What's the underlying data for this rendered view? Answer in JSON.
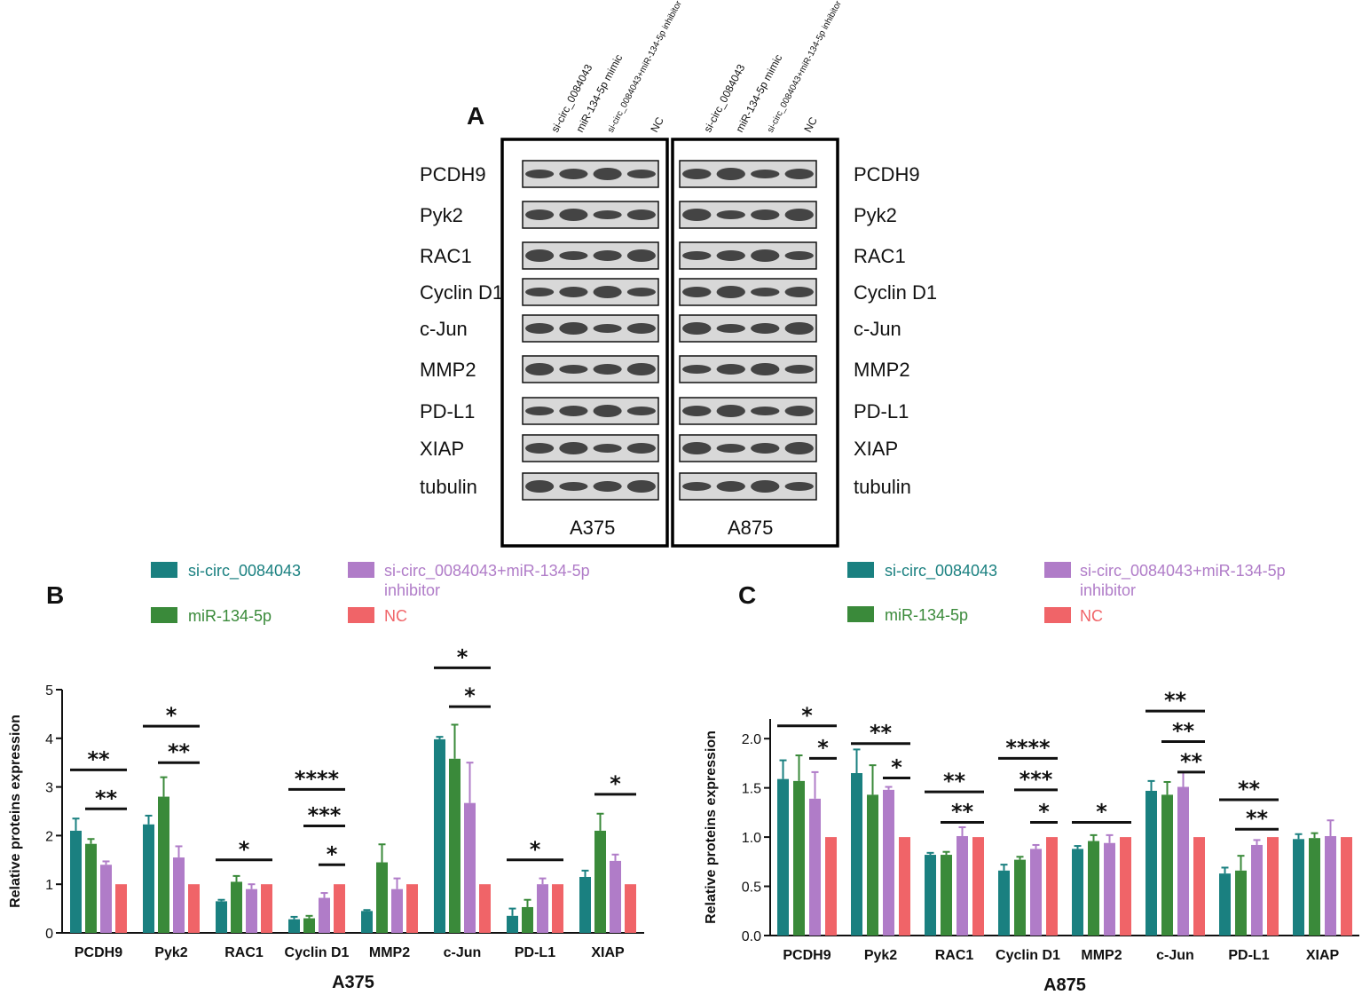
{
  "colors": {
    "si_circ": "#1a8080",
    "mir": "#3a8a3a",
    "combo": "#b07cc8",
    "nc": "#f06468"
  },
  "blot": {
    "panel_letter": "A",
    "proteins": [
      "PCDH9",
      "Pyk2",
      "RAC1",
      "Cyclin D1",
      "c-Jun",
      "MMP2",
      "PD-L1",
      "XIAP",
      "tubulin"
    ],
    "lanes": [
      "si-circ_0084043",
      "miR-134-5p mimic",
      "si-circ_0084043+miR-134-5p inhibitor",
      "NC"
    ],
    "cell_lines": [
      "A375",
      "A875"
    ]
  },
  "legend": {
    "si_circ": "si-circ_0084043",
    "mir": "miR-134-5p",
    "combo_line1": "si-circ_0084043+miR-134-5p",
    "combo_line2": "inhibitor",
    "nc": "NC"
  },
  "chart_data": [
    {
      "panel": "B",
      "type": "bar",
      "title": "A375",
      "ylabel": "Relative proteins expression",
      "ylim": [
        0,
        5
      ],
      "yticks": [
        "0",
        "1",
        "2",
        "3",
        "4",
        "5"
      ],
      "categories": [
        "PCDH9",
        "Pyk2",
        "RAC1",
        "Cyclin D1",
        "MMP2",
        "c-Jun",
        "PD-L1",
        "XIAP"
      ],
      "series": [
        {
          "name": "si-circ_0084043",
          "values": [
            2.1,
            2.23,
            0.65,
            0.28,
            0.45,
            3.98,
            0.35,
            1.15
          ],
          "errors": [
            0.25,
            0.18,
            0.03,
            0.05,
            0.02,
            0.05,
            0.15,
            0.13
          ]
        },
        {
          "name": "miR-134-5p",
          "values": [
            1.83,
            2.8,
            1.05,
            0.3,
            1.45,
            3.58,
            0.53,
            2.1
          ],
          "errors": [
            0.1,
            0.4,
            0.12,
            0.05,
            0.37,
            0.7,
            0.15,
            0.35
          ]
        },
        {
          "name": "si-circ_0084043+miR-134-5p inhibitor",
          "values": [
            1.4,
            1.55,
            0.9,
            0.72,
            0.9,
            2.67,
            1.0,
            1.48
          ],
          "errors": [
            0.07,
            0.23,
            0.1,
            0.1,
            0.22,
            0.83,
            0.12,
            0.13
          ]
        },
        {
          "name": "NC",
          "values": [
            1.0,
            1.0,
            1.0,
            1.0,
            1.0,
            1.0,
            1.0,
            1.0
          ],
          "errors": [
            0,
            0,
            0,
            0,
            0,
            0,
            0,
            0
          ]
        }
      ],
      "significance": [
        {
          "cat": 0,
          "from": 0,
          "to": 3,
          "y": 3.35,
          "label": "**"
        },
        {
          "cat": 0,
          "from": 1,
          "to": 3,
          "y": 2.55,
          "label": "**"
        },
        {
          "cat": 1,
          "from": 0,
          "to": 3,
          "y": 4.25,
          "label": "*"
        },
        {
          "cat": 1,
          "from": 1,
          "to": 3,
          "y": 3.5,
          "label": "**"
        },
        {
          "cat": 2,
          "from": 0,
          "to": 3,
          "y": 1.5,
          "label": "*"
        },
        {
          "cat": 3,
          "from": 0,
          "to": 3,
          "y": 2.95,
          "label": "****"
        },
        {
          "cat": 3,
          "from": 1,
          "to": 3,
          "y": 2.2,
          "label": "***"
        },
        {
          "cat": 3,
          "from": 2,
          "to": 3,
          "y": 1.4,
          "label": "*"
        },
        {
          "cat": 5,
          "from": 0,
          "to": 3,
          "y": 5.45,
          "label": "*"
        },
        {
          "cat": 5,
          "from": 1,
          "to": 3,
          "y": 4.65,
          "label": "*"
        },
        {
          "cat": 6,
          "from": 0,
          "to": 3,
          "y": 1.5,
          "label": "*"
        },
        {
          "cat": 7,
          "from": 1,
          "to": 3,
          "y": 2.85,
          "label": "*"
        }
      ]
    },
    {
      "panel": "C",
      "type": "bar",
      "title": "A875",
      "ylabel": "Relative proteins expression",
      "ylim": [
        0,
        2.2
      ],
      "yticks": [
        "0.0",
        "0.5",
        "1.0",
        "1.5",
        "2.0"
      ],
      "categories": [
        "PCDH9",
        "Pyk2",
        "RAC1",
        "Cyclin D1",
        "MMP2",
        "c-Jun",
        "PD-L1",
        "XIAP"
      ],
      "series": [
        {
          "name": "si-circ_0084043",
          "values": [
            1.59,
            1.65,
            0.82,
            0.66,
            0.88,
            1.47,
            0.63,
            0.98
          ],
          "errors": [
            0.19,
            0.24,
            0.02,
            0.06,
            0.03,
            0.1,
            0.06,
            0.05
          ]
        },
        {
          "name": "miR-134-5p",
          "values": [
            1.57,
            1.43,
            0.82,
            0.77,
            0.96,
            1.43,
            0.66,
            0.99
          ],
          "errors": [
            0.26,
            0.3,
            0.03,
            0.03,
            0.06,
            0.13,
            0.15,
            0.05
          ]
        },
        {
          "name": "si-circ_0084043+miR-134-5p inhibitor",
          "values": [
            1.39,
            1.48,
            1.01,
            0.88,
            0.94,
            1.51,
            0.92,
            1.01
          ],
          "errors": [
            0.27,
            0.03,
            0.09,
            0.04,
            0.08,
            0.15,
            0.05,
            0.16
          ]
        },
        {
          "name": "NC",
          "values": [
            1.0,
            1.0,
            1.0,
            1.0,
            1.0,
            1.0,
            1.0,
            1.0
          ],
          "errors": [
            0,
            0,
            0,
            0,
            0,
            0,
            0,
            0
          ]
        }
      ],
      "significance": [
        {
          "cat": 0,
          "from": 0,
          "to": 3,
          "y": 2.13,
          "label": "*"
        },
        {
          "cat": 0,
          "from": 2,
          "to": 3,
          "y": 1.8,
          "label": "*"
        },
        {
          "cat": 1,
          "from": 0,
          "to": 3,
          "y": 1.95,
          "label": "**"
        },
        {
          "cat": 1,
          "from": 2,
          "to": 3,
          "y": 1.6,
          "label": "*"
        },
        {
          "cat": 2,
          "from": 0,
          "to": 3,
          "y": 1.46,
          "label": "**"
        },
        {
          "cat": 2,
          "from": 1,
          "to": 3,
          "y": 1.15,
          "label": "**"
        },
        {
          "cat": 3,
          "from": 0,
          "to": 3,
          "y": 1.8,
          "label": "****"
        },
        {
          "cat": 3,
          "from": 1,
          "to": 3,
          "y": 1.48,
          "label": "***"
        },
        {
          "cat": 3,
          "from": 2,
          "to": 3,
          "y": 1.15,
          "label": "*"
        },
        {
          "cat": 4,
          "from": 0,
          "to": 3,
          "y": 1.15,
          "label": "*"
        },
        {
          "cat": 5,
          "from": 0,
          "to": 3,
          "y": 2.28,
          "label": "**"
        },
        {
          "cat": 5,
          "from": 1,
          "to": 3,
          "y": 1.97,
          "label": "**"
        },
        {
          "cat": 5,
          "from": 2,
          "to": 3,
          "y": 1.66,
          "label": "**"
        },
        {
          "cat": 6,
          "from": 0,
          "to": 3,
          "y": 1.38,
          "label": "**"
        },
        {
          "cat": 6,
          "from": 1,
          "to": 3,
          "y": 1.08,
          "label": "**"
        }
      ]
    }
  ]
}
